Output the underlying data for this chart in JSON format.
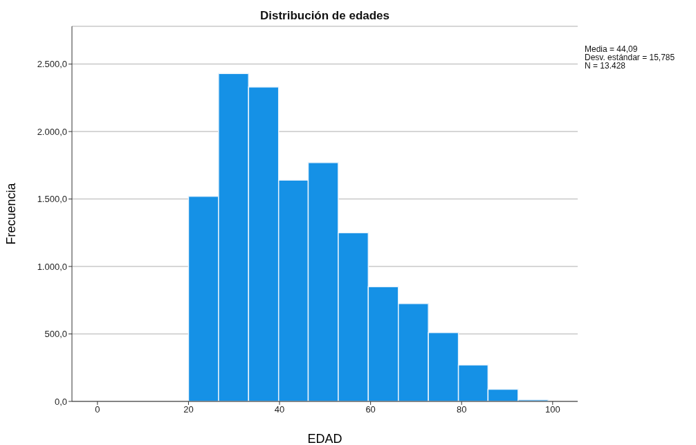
{
  "chart_data": {
    "type": "histogram",
    "title": "Distribución de edades",
    "xlabel": "EDAD",
    "ylabel": "Frecuencia",
    "bins": [
      20,
      26.6,
      33.2,
      39.8,
      46.3,
      52.9,
      59.5,
      66.1,
      72.7,
      79.3,
      85.8,
      92.4,
      99
    ],
    "values": [
      1520,
      2430,
      2330,
      1640,
      1770,
      1250,
      850,
      725,
      510,
      270,
      90,
      12
    ],
    "color": "#1591e6",
    "xlim": [
      -5.6,
      105.5
    ],
    "xticks": [
      0,
      20,
      40,
      60,
      80,
      100
    ],
    "ylim": [
      0,
      2780
    ],
    "yticks": [
      {
        "value": 0,
        "label": "0,0"
      },
      {
        "value": 500,
        "label": "500,0"
      },
      {
        "value": 1000,
        "label": "1.000,0"
      },
      {
        "value": 1500,
        "label": "1.500,0"
      },
      {
        "value": 2000,
        "label": "2.000,0"
      },
      {
        "value": 2500,
        "label": "2.500,0"
      }
    ],
    "grid": "y",
    "annotations": [
      "Media = 44,09",
      "Desv. estándar = 15,785",
      "N = 13.428"
    ]
  }
}
